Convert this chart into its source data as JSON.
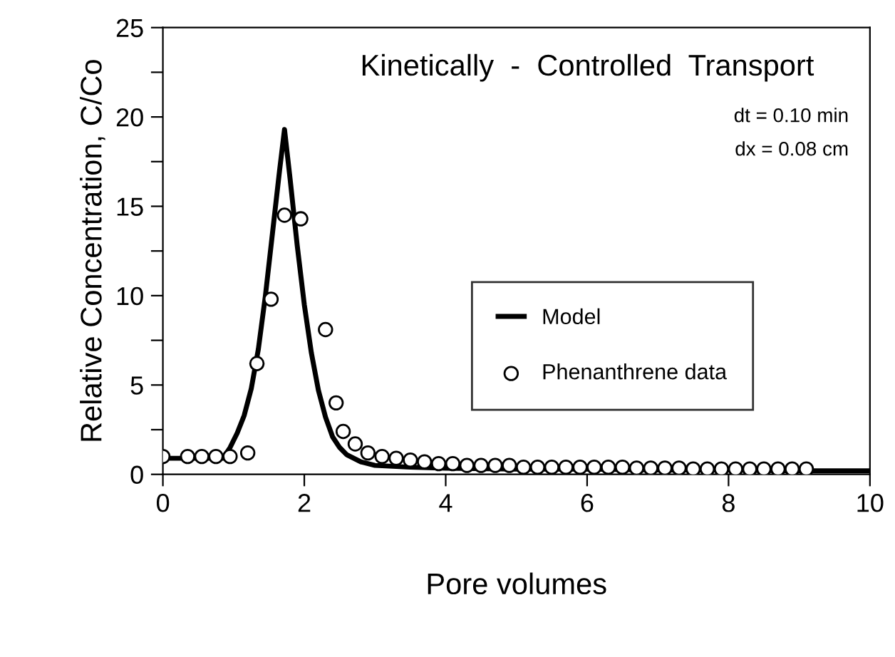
{
  "chart_data": {
    "type": "line",
    "title": "Kinetically  -  Controlled  Transport",
    "xlabel": "Pore volumes",
    "ylabel": "Relative Concentration, C/Co",
    "annotations": [
      "dt = 0.10 min",
      "dx = 0.08 cm"
    ],
    "xlim": [
      0,
      10
    ],
    "ylim": [
      0,
      25
    ],
    "xticks": [
      0,
      2,
      4,
      6,
      8,
      10
    ],
    "yticks": [
      0,
      {
        "value": 2.5,
        "label": null
      },
      5,
      {
        "value": 7.5,
        "label": null
      },
      10,
      {
        "value": 12.5,
        "label": null
      },
      15,
      {
        "value": 17.5,
        "label": null
      },
      20,
      {
        "value": 22.5,
        "label": null
      },
      25
    ],
    "legend": "bottom right",
    "grid": false,
    "series": [
      {
        "name": "Model",
        "color": "#000000",
        "marker": "none",
        "line_style": "solid",
        "x": [
          0,
          0.5,
          0.85,
          0.95,
          1.05,
          1.15,
          1.25,
          1.35,
          1.45,
          1.55,
          1.65,
          1.72,
          1.8,
          1.9,
          2.0,
          2.1,
          2.2,
          2.3,
          2.4,
          2.5,
          2.6,
          2.8,
          3.0,
          3.5,
          4,
          5,
          6,
          7,
          8,
          9,
          10
        ],
        "values": [
          0.9,
          0.9,
          0.9,
          1.5,
          2.3,
          3.3,
          4.8,
          7.0,
          10.0,
          13.5,
          17.0,
          19.3,
          16.5,
          12.8,
          9.5,
          6.8,
          4.7,
          3.2,
          2.1,
          1.5,
          1.1,
          0.7,
          0.5,
          0.4,
          0.35,
          0.3,
          0.3,
          0.25,
          0.25,
          0.2,
          0.2
        ]
      },
      {
        "name": "Phenanthrene data",
        "type": "scatter",
        "color": "#000000",
        "marker": "circle",
        "x": [
          0.0,
          0.35,
          0.55,
          0.75,
          0.95,
          1.2,
          1.33,
          1.53,
          1.72,
          1.95,
          2.3,
          2.45,
          2.55,
          2.72,
          2.9,
          3.1,
          3.3,
          3.5,
          3.7,
          3.9,
          4.1,
          4.3,
          4.5,
          4.7,
          4.9,
          5.1,
          5.3,
          5.5,
          5.7,
          5.9,
          6.1,
          6.3,
          6.5,
          6.7,
          6.9,
          7.1,
          7.3,
          7.5,
          7.7,
          7.9,
          8.1,
          8.3,
          8.5,
          8.7,
          8.9,
          9.1
        ],
        "values": [
          1.0,
          1.0,
          1.0,
          1.0,
          1.0,
          1.2,
          6.2,
          9.8,
          14.5,
          14.3,
          8.1,
          4.0,
          2.4,
          1.7,
          1.2,
          1.0,
          0.9,
          0.8,
          0.7,
          0.6,
          0.6,
          0.5,
          0.5,
          0.5,
          0.5,
          0.4,
          0.4,
          0.4,
          0.4,
          0.4,
          0.4,
          0.4,
          0.4,
          0.35,
          0.35,
          0.35,
          0.35,
          0.3,
          0.3,
          0.3,
          0.3,
          0.3,
          0.3,
          0.3,
          0.3,
          0.3
        ]
      }
    ]
  }
}
